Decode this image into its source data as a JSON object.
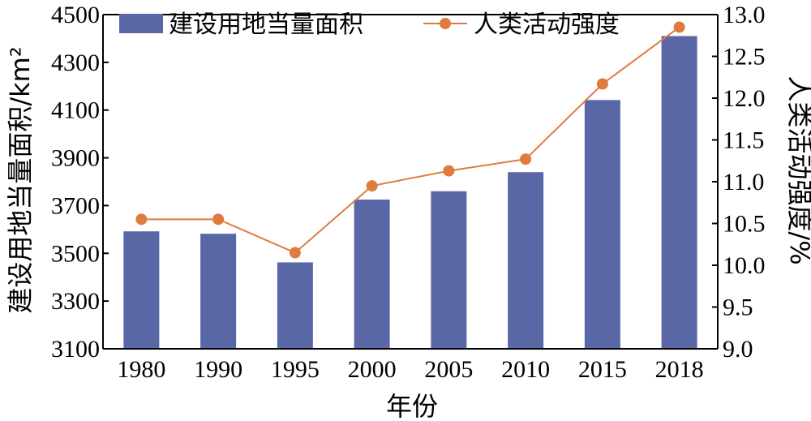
{
  "chart_data": {
    "type": "bar+line",
    "categories": [
      "1980",
      "1990",
      "1995",
      "2000",
      "2005",
      "2010",
      "2015",
      "2018"
    ],
    "series": [
      {
        "name": "建设用地当量面积",
        "type": "bar",
        "axis": "left",
        "color": "#5a67a6",
        "values": [
          3592,
          3582,
          3462,
          3725,
          3760,
          3840,
          4142,
          4410
        ]
      },
      {
        "name": "人类活动强度",
        "type": "line",
        "axis": "right",
        "color": "#e07b3f",
        "values": [
          10.55,
          10.55,
          10.15,
          10.95,
          11.13,
          11.27,
          12.17,
          12.85
        ]
      }
    ],
    "xlabel": "年份",
    "ylabel_left": "建设用地当量面积/km²",
    "ylabel_right": "人类活动强度/%",
    "ylim_left": [
      3100,
      4500
    ],
    "ylim_right": [
      9.0,
      13.0
    ],
    "yticks_left": [
      "3100",
      "3300",
      "3500",
      "3700",
      "3900",
      "4100",
      "4300",
      "4500"
    ],
    "yticks_right": [
      "9.0",
      "9.5",
      "10.0",
      "10.5",
      "11.0",
      "11.5",
      "12.0",
      "12.5",
      "13.0"
    ],
    "grid": false,
    "legend_position": "top"
  }
}
